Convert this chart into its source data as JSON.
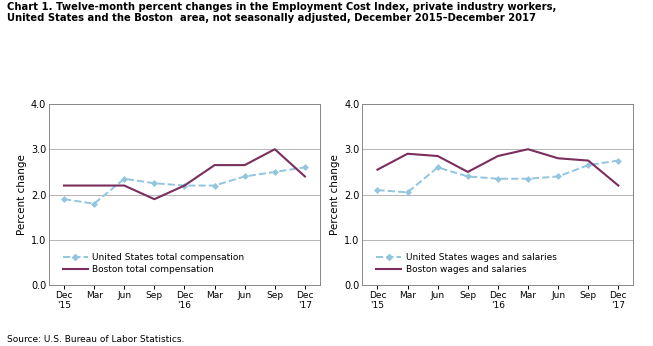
{
  "title_line1": "Chart 1. Twelve-month percent changes in the Employment Cost Index, private industry workers,",
  "title_line2": "United States and the Boston  area, not seasonally adjusted, December 2015–December 2017",
  "source": "Source: U.S. Bureau of Labor Statistics.",
  "ylabel": "Percent change",
  "x_labels": [
    "Dec\n'15",
    "Mar",
    "Jun",
    "Sep",
    "Dec\n'16",
    "Mar",
    "Jun",
    "Sep",
    "Dec\n'17"
  ],
  "ylim": [
    0.0,
    4.0
  ],
  "yticks": [
    0.0,
    1.0,
    2.0,
    3.0,
    4.0
  ],
  "left_chart": {
    "us_total_comp": [
      1.9,
      1.8,
      2.35,
      2.25,
      2.2,
      2.2,
      2.4,
      2.5,
      2.6
    ],
    "boston_total_comp": [
      2.2,
      2.2,
      2.2,
      1.9,
      2.2,
      2.65,
      2.65,
      3.0,
      2.4
    ],
    "legend1": "United States total compensation",
    "legend2": "Boston total compensation"
  },
  "right_chart": {
    "us_wages_salaries": [
      2.1,
      2.05,
      2.6,
      2.4,
      2.35,
      2.35,
      2.4,
      2.65,
      2.75
    ],
    "boston_wages_salaries": [
      2.55,
      2.9,
      2.85,
      2.5,
      2.85,
      3.0,
      2.8,
      2.75,
      2.2
    ],
    "legend1": "United States wages and salaries",
    "legend2": "Boston wages and salaries"
  },
  "us_color": "#92c5de",
  "boston_color": "#7b2d5e",
  "grid_color": "#aaaaaa",
  "background_color": "#ffffff",
  "spine_color": "#888888"
}
